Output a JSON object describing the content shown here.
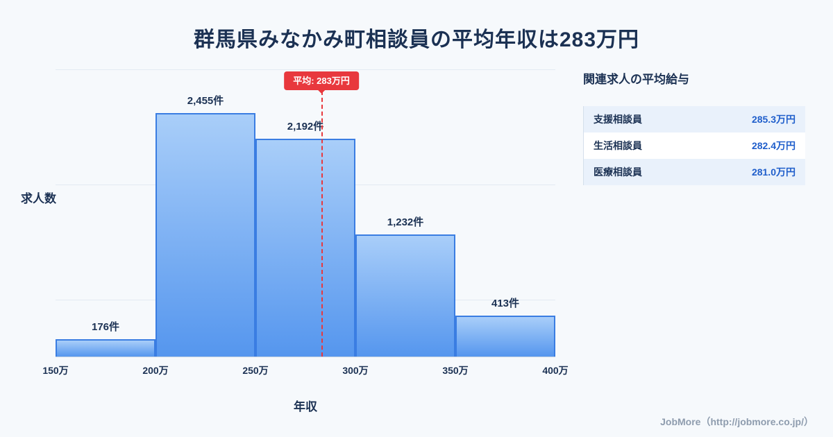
{
  "title": "群馬県みなかみ町相談員の平均年収は283万円",
  "chart_data": {
    "type": "bar",
    "categories": [
      "150万-200万",
      "200万-250万",
      "250万-300万",
      "300万-350万",
      "350万-400万"
    ],
    "values": [
      176,
      2455,
      2192,
      1232,
      413
    ],
    "bar_labels": [
      "176件",
      "2,455件",
      "2,192件",
      "1,232件",
      "413件"
    ],
    "x_ticks": [
      "150万",
      "200万",
      "250万",
      "300万",
      "350万",
      "400万"
    ],
    "xlabel": "年収",
    "ylabel": "求人数",
    "x_range": [
      150,
      400
    ],
    "ylim": [
      0,
      2900
    ],
    "grid": true,
    "legend": "none",
    "average": {
      "value": 283,
      "label": "平均: 283万円"
    },
    "colors": {
      "bar_fill_top": "#a9cef9",
      "bar_fill_bottom": "#5596ee",
      "bar_border": "#3a7de2",
      "average_line": "#e8383d",
      "gridline": "#e3eaf2"
    }
  },
  "side_panel": {
    "title": "関連求人の平均給与",
    "rows": [
      {
        "label": "支援相談員",
        "value": "285.3万円"
      },
      {
        "label": "生活相談員",
        "value": "282.4万円"
      },
      {
        "label": "医療相談員",
        "value": "281.0万円"
      }
    ]
  },
  "footer": "JobMore（http://jobmore.co.jp/）"
}
